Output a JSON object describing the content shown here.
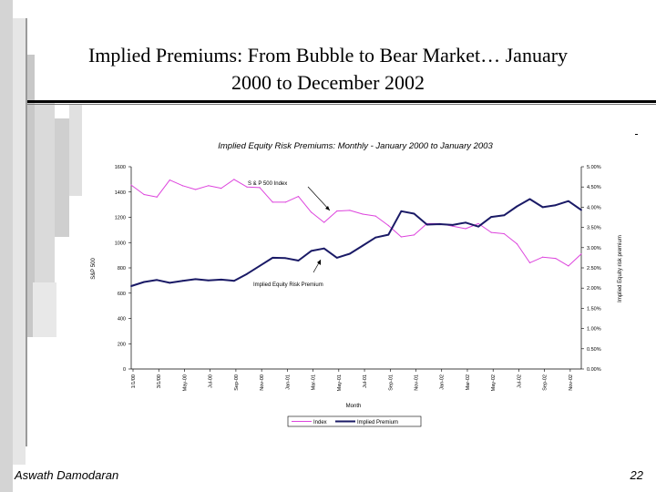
{
  "slide": {
    "title_line1": "Implied Premiums: From Bubble to Bear Market… January",
    "title_line2": "2000 to December 2002",
    "footer_author": "Aswath Damodaran",
    "page_number": "22"
  },
  "chart_data": {
    "type": "line",
    "title": "Implied Equity Risk Premiums: Monthly - January 2000 to January 2003",
    "xlabel": "Month",
    "ylabel_left": "S&P 500",
    "ylabel_right": "Implied Equity risk premium",
    "ylim_left": [
      0,
      1600
    ],
    "ylim_right": [
      0,
      5
    ],
    "yticks_left": [
      "0",
      "200",
      "400",
      "600",
      "800",
      "1000",
      "1200",
      "1400",
      "1600"
    ],
    "yticks_right": [
      "0.00%",
      "0.50%",
      "1.00%",
      "1.50%",
      "2.00%",
      "2.50%",
      "3.00%",
      "3.50%",
      "4.00%",
      "4.50%",
      "5.00%"
    ],
    "x_tick_labels": [
      "1/1/00",
      "3/1/00",
      "May-00",
      "Jul-00",
      "Sep-00",
      "Nov-00",
      "Jan-01",
      "Mar-01",
      "May-01",
      "Jul-01",
      "Sep-01",
      "Nov-01",
      "Jan-02",
      "Mar-02",
      "May-02",
      "Jul-02",
      "Sep-02",
      "Nov-02"
    ],
    "series": [
      {
        "name": "Index",
        "color": "#dd44dd",
        "axis": "left",
        "values": [
          1455,
          1380,
          1360,
          1495,
          1450,
          1420,
          1450,
          1430,
          1500,
          1440,
          1435,
          1320,
          1320,
          1365,
          1240,
          1160,
          1250,
          1255,
          1225,
          1210,
          1135,
          1045,
          1060,
          1150,
          1150,
          1130,
          1110,
          1150,
          1080,
          1070,
          990,
          840,
          885,
          875,
          815,
          910
        ]
      },
      {
        "name": "Implied Premium",
        "color": "#1a1a66",
        "axis": "right",
        "values": [
          2.05,
          2.15,
          2.2,
          2.13,
          2.18,
          2.22,
          2.19,
          2.21,
          2.18,
          2.35,
          2.55,
          2.75,
          2.74,
          2.68,
          2.92,
          2.98,
          2.75,
          2.85,
          3.05,
          3.25,
          3.32,
          3.9,
          3.84,
          3.57,
          3.58,
          3.56,
          3.62,
          3.52,
          3.76,
          3.8,
          4.02,
          4.2,
          4.0,
          4.05,
          4.15,
          3.93
        ]
      }
    ],
    "annotations": [
      {
        "text": "S & P 500 Index",
        "points_to": "Index"
      },
      {
        "text": "Implied Equity Risk Premium",
        "points_to": "Implied Premium"
      }
    ],
    "legend": {
      "position": "bottom",
      "entries": [
        "Index",
        "Implied Premium"
      ]
    }
  }
}
